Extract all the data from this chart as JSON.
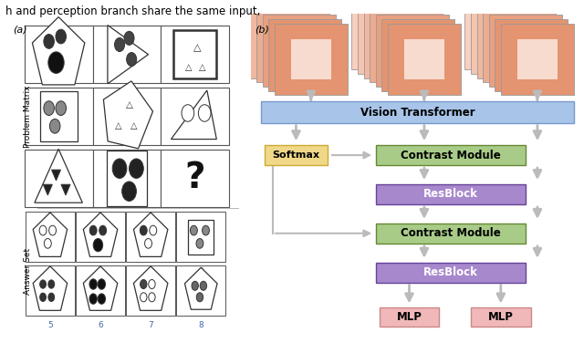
{
  "title_text": "h and perception branch share the same input,",
  "panel_a_label": "(a)",
  "panel_b_label": "(b)",
  "vit_color": "#a8c4e8",
  "contrast_color": "#a8cc88",
  "resblock_color": "#a888cc",
  "mlp_color": "#f0b8b8",
  "softmax_color": "#f0d888",
  "background": "#ffffff",
  "arrow_color": "#bbbbbb",
  "stack_colors": [
    "#f8d0c0",
    "#f4c4b0",
    "#f0b8a0",
    "#ecac90",
    "#e8a080",
    "#e49470"
  ]
}
